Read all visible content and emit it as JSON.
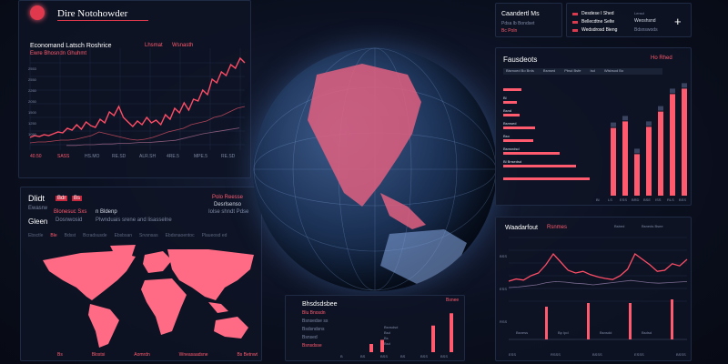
{
  "header": {
    "title": "Dire Notohowder",
    "logo": "globe-logo-icon",
    "accent": "#ff5a6e"
  },
  "top_left": {
    "title": "Economand Latsch Roshrice",
    "subtitle": "Ewre Bhosndn Ghuhmt",
    "legend": [
      "Lhsmat",
      "Wsnasth"
    ],
    "y_ticks": [
      "2553",
      "2550",
      "2260",
      "2050",
      "1500",
      "1250",
      "1050"
    ],
    "x_ticks": [
      "40.50",
      "SASS",
      "HS.MO",
      "RE.SD",
      "ALR.SH",
      "4RE.5",
      "MPE.5",
      "RE.SD"
    ]
  },
  "map_panel": {
    "title": "Dlidt",
    "subtitle": "Ewasrw",
    "label": "Gleen",
    "tags": [
      "Bdr",
      "Bs"
    ],
    "row1": [
      "Blonesuc Sxs",
      "n Bldenp"
    ],
    "row2": [
      "Dosnwosid",
      "Plwnduais srene and lisasselne"
    ],
    "right": [
      "Polo Reesse",
      "Desrlsenso",
      "Iolse shndt Pdse"
    ],
    "tabs": [
      "Ebsctle",
      "Ble",
      "Bdsst",
      "Bcradsusde",
      "Ebsbsan",
      "Srvsnsas",
      "Ebdsnaoentoc",
      "Plaueosd ed"
    ],
    "footer": [
      "Bs",
      "Blostsi",
      "Aomrdn",
      "Wneasaadsne",
      "Bs Betnwt"
    ],
    "map_color": "#ff6680"
  },
  "top_right_a": {
    "title": "Caandertl Ms",
    "line2": "Pdsa lb Bondset",
    "line3": "Bc Poln"
  },
  "top_right_b": {
    "items": [
      "Desdese I Shed",
      "Bellecdtne Selte",
      "Wedsdrosd Bieng"
    ],
    "side": [
      "Lensd",
      "Weoshsnd",
      "Bdsnswods"
    ],
    "add_icon": "plus-icon"
  },
  "bar_panel": {
    "title": "Fausdeots",
    "badge": "Ho Rhed",
    "filters": [
      "Blsmoed Bo Brds",
      "Bsnsed",
      "Pbsd Bsfe",
      "Isd",
      "Wlsbsod Bo"
    ],
    "hbar_labels": [
      "Bl",
      "Bsnd",
      "Bsmsed",
      "Bso",
      "Bsnsndsd",
      "Bl Bnsedsd"
    ],
    "x_ticks": [
      "Bl",
      "LS",
      "ESS",
      "BRD",
      "BSE",
      "ISS",
      "RLS",
      "BSS"
    ]
  },
  "line_panel": {
    "title": "Waadarfout",
    "badge": "Rsnmes",
    "legend": [
      "Bsbed",
      "Bsneds Bsee"
    ],
    "y_ticks": [
      "BSS",
      "ESS",
      "RSS"
    ],
    "labels": [
      "Bsness",
      "Bp Ipd",
      "Bsnsdd",
      "Bsdsd"
    ],
    "x_ticks": [
      "ESS",
      "RSSS",
      "BSSS",
      "ESSS",
      "BSSS"
    ]
  },
  "bottom_panel": {
    "title": "Bhsdsdsbee",
    "badge": "Bsnee",
    "rows": [
      "Blu Bnosdn",
      "Bsnsedse ss",
      "Bsdsndsns",
      "Bsnsed",
      "Bsnsdsse"
    ],
    "mid": [
      "Bsnsdsd",
      "Bsd",
      "Bs",
      "Bsd"
    ],
    "x_ticks": [
      "B",
      "BS",
      "BSS",
      "BS",
      "BSS",
      "BSS"
    ]
  },
  "chart_data": [
    {
      "type": "line",
      "series": [
        {
          "values": [
            8,
            10,
            9,
            11,
            10,
            12,
            14,
            13,
            18,
            16,
            22,
            17,
            25,
            21,
            19,
            28,
            24,
            36,
            32,
            42,
            30,
            25,
            20,
            26,
            22,
            30,
            24,
            27,
            22,
            33,
            28,
            40,
            35,
            46,
            38,
            50,
            48,
            60,
            55,
            72,
            68,
            80,
            76,
            88,
            84,
            95,
            90
          ]
        },
        {
          "values": [
            6,
            7,
            7,
            8,
            9,
            9,
            10,
            12,
            14,
            18,
            16,
            14,
            12,
            10,
            9,
            10,
            12,
            15,
            18,
            20,
            22,
            26,
            28,
            30,
            34,
            36,
            40,
            44,
            46
          ]
        },
        {
          "values": [
            4,
            4,
            5,
            5,
            6,
            6,
            7,
            7,
            8,
            8,
            9,
            10,
            11,
            14,
            17,
            20,
            22,
            24,
            26,
            28
          ]
        }
      ]
    },
    {
      "type": "bar",
      "orientation": "horizontal",
      "values": [
        20,
        15,
        18,
        35,
        33,
        62,
        80,
        95
      ]
    },
    {
      "type": "bar",
      "values": [
        62,
        68,
        38,
        63,
        77,
        93,
        98
      ]
    },
    {
      "type": "line",
      "series": [
        {
          "values": [
            30,
            34,
            32,
            40,
            45,
            60,
            80,
            65,
            50,
            45,
            48,
            42,
            38,
            35,
            33,
            40,
            52,
            80,
            70,
            60,
            48,
            50,
            62,
            58,
            70
          ]
        },
        {
          "values": [
            25,
            26,
            28,
            30,
            34,
            36,
            35,
            33,
            32,
            30,
            32,
            34,
            36,
            38,
            36,
            34,
            33,
            34,
            35,
            36
          ]
        }
      ]
    },
    {
      "type": "bar",
      "values": [
        45,
        50,
        50,
        55
      ]
    },
    {
      "type": "bar",
      "values": [
        20,
        30,
        65,
        95
      ]
    }
  ]
}
